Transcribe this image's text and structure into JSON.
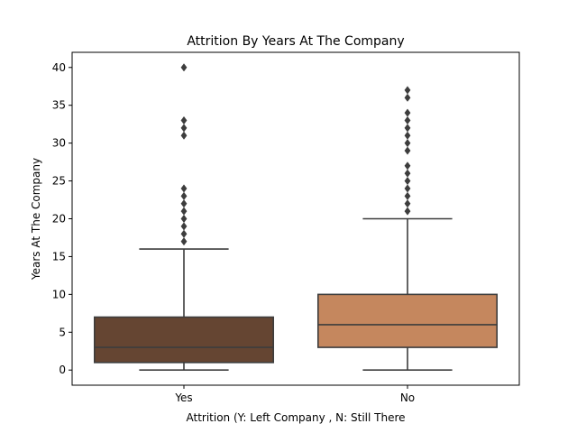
{
  "chart_data": {
    "type": "box",
    "title": "Attrition By Years At The Company",
    "xlabel": "Attrition (Y: Left Company , N: Still There",
    "ylabel": "Years At The Company",
    "categories": [
      "Yes",
      "No"
    ],
    "ylim": [
      -2,
      42
    ],
    "yticks": [
      0,
      5,
      10,
      15,
      20,
      25,
      30,
      35,
      40
    ],
    "grid": false,
    "boxes": [
      {
        "category": "Yes",
        "color": "#654532",
        "min": 0,
        "q1": 1,
        "median": 3,
        "q3": 7,
        "max": 16,
        "outliers": [
          17,
          18,
          19,
          20,
          21,
          22,
          23,
          24,
          31,
          32,
          33,
          40
        ]
      },
      {
        "category": "No",
        "color": "#C5875E",
        "min": 0,
        "q1": 3,
        "median": 6,
        "q3": 10,
        "max": 20,
        "outliers": [
          21,
          22,
          23,
          24,
          25,
          26,
          27,
          29,
          30,
          31,
          32,
          33,
          34,
          36,
          37
        ]
      }
    ]
  }
}
